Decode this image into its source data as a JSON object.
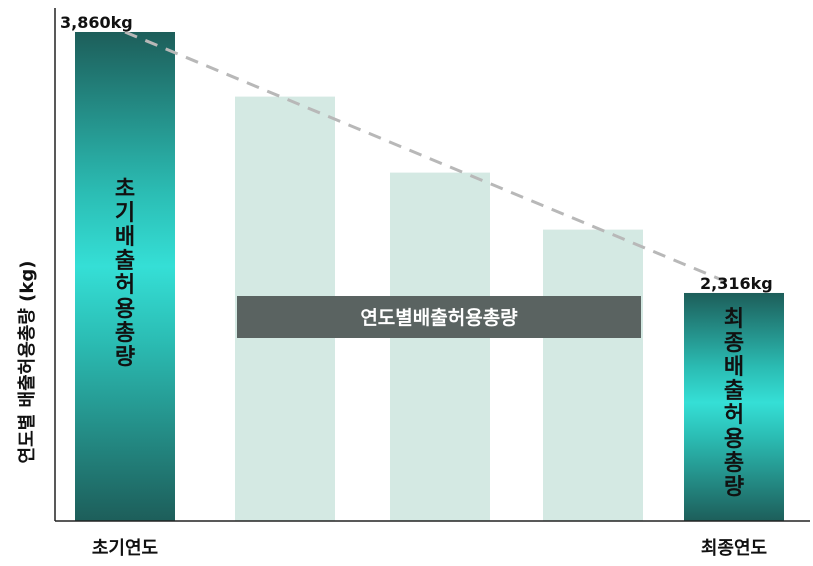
{
  "chart_data": {
    "type": "bar",
    "ylabel": "연도별 배출허용총량 (kg)",
    "categories": [
      "초기연도",
      "",
      "",
      "",
      "최종연도"
    ],
    "values": [
      3860,
      3350,
      2750,
      2316,
      2316
    ],
    "displayed_heights": [
      3860,
      3350,
      2750,
      2300,
      1800
    ],
    "data_labels": [
      "3,860kg",
      "",
      "",
      "",
      "2,316kg"
    ],
    "ylim": [
      0,
      3950
    ],
    "trend_line": {
      "from": "초기연도",
      "to": "최종연도",
      "style": "dashed"
    },
    "band_label": "연도별배출허용총량",
    "bar_inner_labels": [
      "초기배출허용총량",
      "",
      "",
      "",
      "최종배출허용총량"
    ],
    "colors": {
      "highlight_dark": "#1d5e5a",
      "highlight_light": "#35dfd6",
      "middle_bar": "#d4e9e3",
      "band": "#5a6361",
      "trend": "#b8b8b8",
      "axis": "#222222"
    },
    "grid": false,
    "legend": "none"
  }
}
